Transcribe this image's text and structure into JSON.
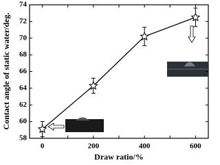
{
  "chart_data": {
    "type": "line",
    "x_label": "Draw ratio/%",
    "y_label": "Contact angle of static water/deg.",
    "x": [
      0,
      200,
      400,
      600
    ],
    "series": [
      {
        "color": "#000000",
        "values": [
          59.1,
          64.3,
          70.2,
          72.5
        ],
        "errors": [
          0.9,
          0.9,
          1.1,
          1.1
        ]
      }
    ],
    "xlim": [
      -50,
      650
    ],
    "xticks": [
      0,
      100,
      200,
      300,
      400,
      500,
      600
    ],
    "ylim": [
      58,
      74
    ],
    "yticks": [
      58,
      60,
      62,
      64,
      66,
      68,
      70,
      72,
      74
    ]
  }
}
